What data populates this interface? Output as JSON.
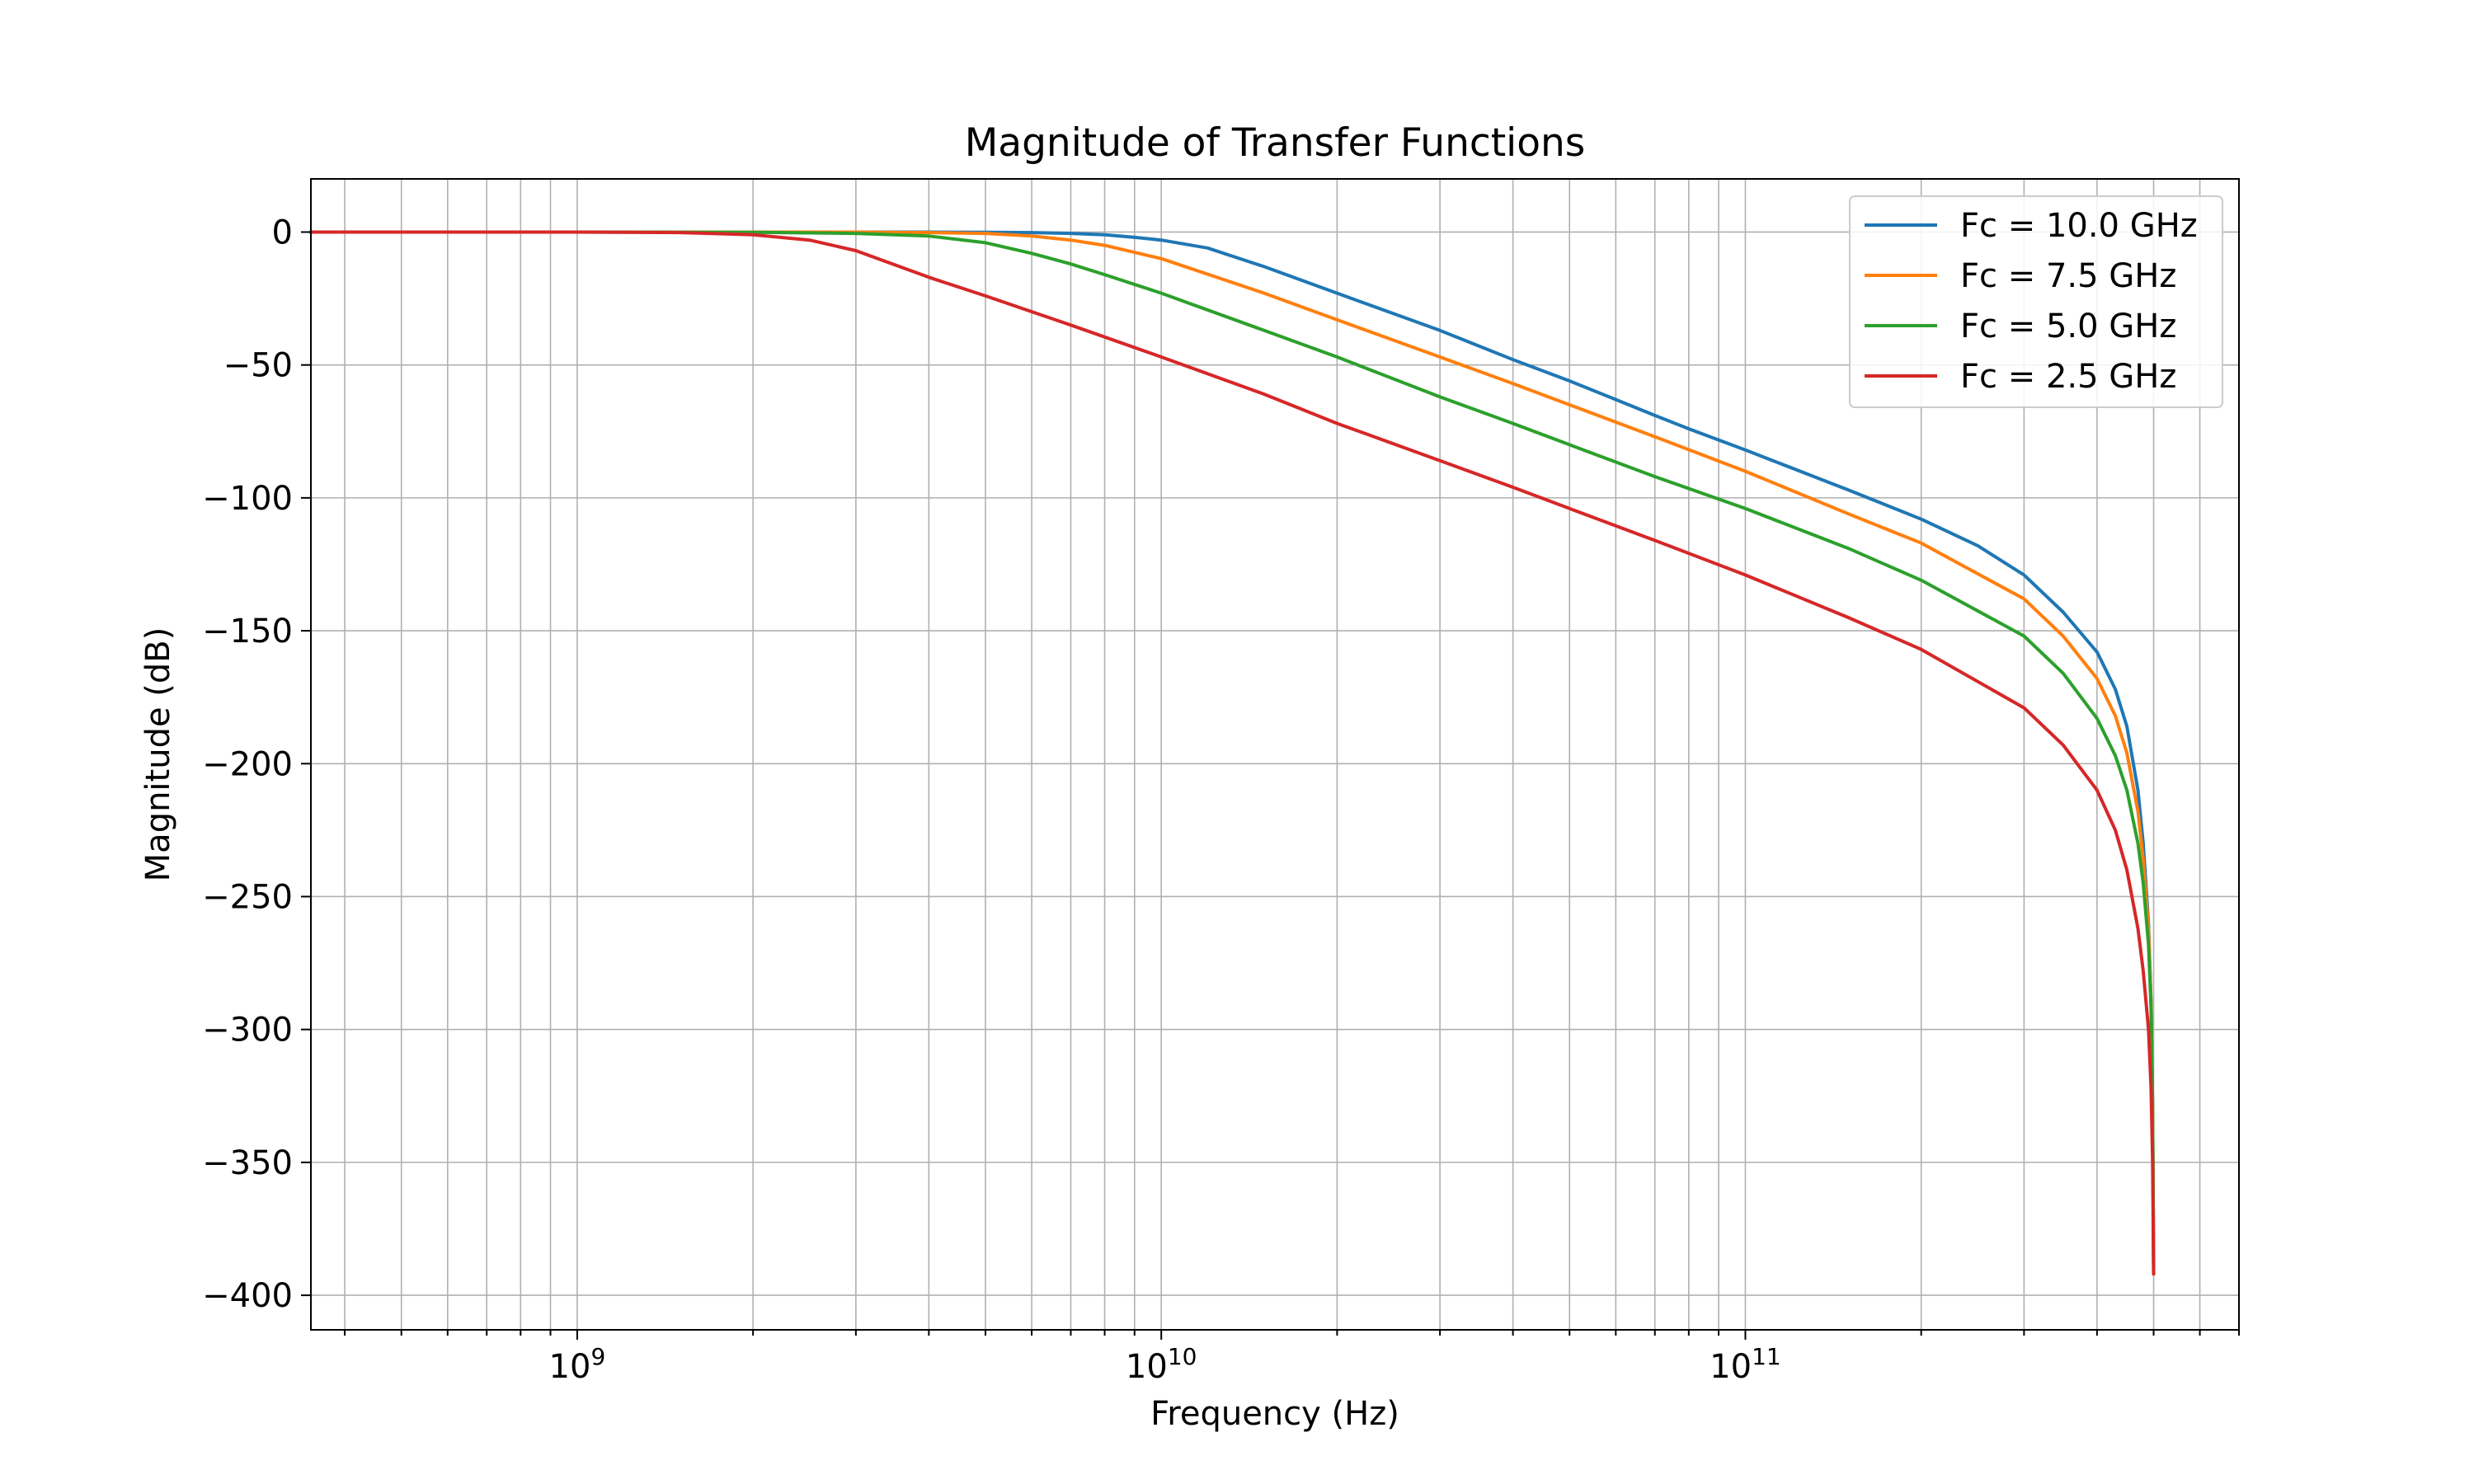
{
  "chart_data": {
    "type": "line",
    "title": "Magnitude of Transfer Functions",
    "xlabel": "Frequency (Hz)",
    "ylabel": "Magnitude (dB)",
    "xscale": "log",
    "xlim": [
      350000000,
      700000000000
    ],
    "ylim": [
      -413,
      20
    ],
    "grid": "both",
    "legend_position": "top-right",
    "x_ticks": [
      {
        "value": 1000000000,
        "base": "10",
        "exp": "9"
      },
      {
        "value": 10000000000,
        "base": "10",
        "exp": "10"
      },
      {
        "value": 100000000000,
        "base": "10",
        "exp": "11"
      }
    ],
    "y_ticks": [
      {
        "value": 0,
        "label": "0"
      },
      {
        "value": -50,
        "label": "−50"
      },
      {
        "value": -100,
        "label": "−100"
      },
      {
        "value": -150,
        "label": "−150"
      },
      {
        "value": -200,
        "label": "−200"
      },
      {
        "value": -250,
        "label": "−250"
      },
      {
        "value": -300,
        "label": "−300"
      },
      {
        "value": -350,
        "label": "−350"
      },
      {
        "value": -400,
        "label": "−400"
      }
    ],
    "series": [
      {
        "name": "Fc = 10.0 GHz",
        "color": "#1f77b4",
        "points": [
          [
            350000000,
            0
          ],
          [
            1000000000,
            0
          ],
          [
            2000000000,
            0
          ],
          [
            3000000000,
            0
          ],
          [
            4000000000,
            0
          ],
          [
            5000000000,
            -0.1
          ],
          [
            6000000000,
            -0.2
          ],
          [
            7000000000,
            -0.5
          ],
          [
            8000000000,
            -1
          ],
          [
            9000000000,
            -2
          ],
          [
            10000000000,
            -3
          ],
          [
            12000000000,
            -6
          ],
          [
            15000000000,
            -13
          ],
          [
            20000000000,
            -23
          ],
          [
            30000000000,
            -37
          ],
          [
            40000000000,
            -48
          ],
          [
            50000000000,
            -56
          ],
          [
            60000000000,
            -63
          ],
          [
            70000000000,
            -69
          ],
          [
            80000000000,
            -74
          ],
          [
            100000000000,
            -82
          ],
          [
            150000000000,
            -97
          ],
          [
            200000000000,
            -108
          ],
          [
            250000000000,
            -118
          ],
          [
            300000000000,
            -129
          ],
          [
            350000000000,
            -143
          ],
          [
            400000000000,
            -158
          ],
          [
            430000000000,
            -172
          ],
          [
            450000000000,
            -186
          ],
          [
            470000000000,
            -210
          ],
          [
            480000000000,
            -230
          ],
          [
            490000000000,
            -260
          ],
          [
            495000000000,
            -290
          ],
          [
            498000000000,
            -330
          ],
          [
            500000000000,
            -390
          ]
        ]
      },
      {
        "name": "Fc = 7.5 GHz",
        "color": "#ff7f0e",
        "points": [
          [
            350000000,
            0
          ],
          [
            1000000000,
            0
          ],
          [
            2000000000,
            0
          ],
          [
            3000000000,
            0
          ],
          [
            4000000000,
            -0.2
          ],
          [
            5000000000,
            -0.5
          ],
          [
            6000000000,
            -1.5
          ],
          [
            7000000000,
            -3
          ],
          [
            8000000000,
            -5
          ],
          [
            10000000000,
            -10
          ],
          [
            15000000000,
            -23
          ],
          [
            20000000000,
            -33
          ],
          [
            30000000000,
            -47
          ],
          [
            40000000000,
            -57
          ],
          [
            50000000000,
            -65
          ],
          [
            70000000000,
            -77
          ],
          [
            100000000000,
            -90
          ],
          [
            150000000000,
            -106
          ],
          [
            200000000000,
            -117
          ],
          [
            300000000000,
            -138
          ],
          [
            350000000000,
            -152
          ],
          [
            400000000000,
            -168
          ],
          [
            430000000000,
            -182
          ],
          [
            450000000000,
            -196
          ],
          [
            470000000000,
            -218
          ],
          [
            480000000000,
            -236
          ],
          [
            490000000000,
            -262
          ],
          [
            495000000000,
            -290
          ],
          [
            498000000000,
            -330
          ],
          [
            500000000000,
            -390
          ]
        ]
      },
      {
        "name": "Fc = 5.0 GHz",
        "color": "#2ca02c",
        "points": [
          [
            350000000,
            0
          ],
          [
            1000000000,
            0
          ],
          [
            2000000000,
            -0.1
          ],
          [
            3000000000,
            -0.5
          ],
          [
            4000000000,
            -1.5
          ],
          [
            5000000000,
            -4
          ],
          [
            6000000000,
            -8
          ],
          [
            7000000000,
            -12
          ],
          [
            8000000000,
            -16
          ],
          [
            10000000000,
            -23
          ],
          [
            15000000000,
            -37
          ],
          [
            20000000000,
            -47
          ],
          [
            30000000000,
            -62
          ],
          [
            40000000000,
            -72
          ],
          [
            50000000000,
            -80
          ],
          [
            70000000000,
            -92
          ],
          [
            100000000000,
            -104
          ],
          [
            150000000000,
            -119
          ],
          [
            200000000000,
            -131
          ],
          [
            300000000000,
            -152
          ],
          [
            350000000000,
            -166
          ],
          [
            400000000000,
            -183
          ],
          [
            430000000000,
            -197
          ],
          [
            450000000000,
            -210
          ],
          [
            470000000000,
            -230
          ],
          [
            480000000000,
            -245
          ],
          [
            490000000000,
            -268
          ],
          [
            495000000000,
            -292
          ],
          [
            498000000000,
            -330
          ],
          [
            500000000000,
            -390
          ]
        ]
      },
      {
        "name": "Fc = 2.5 GHz",
        "color": "#d62728",
        "points": [
          [
            350000000,
            0
          ],
          [
            1000000000,
            0
          ],
          [
            1500000000,
            -0.2
          ],
          [
            2000000000,
            -1
          ],
          [
            2500000000,
            -3
          ],
          [
            3000000000,
            -7
          ],
          [
            4000000000,
            -17
          ],
          [
            5000000000,
            -24
          ],
          [
            7000000000,
            -35
          ],
          [
            10000000000,
            -47
          ],
          [
            15000000000,
            -61
          ],
          [
            20000000000,
            -72
          ],
          [
            30000000000,
            -86
          ],
          [
            40000000000,
            -96
          ],
          [
            50000000000,
            -104
          ],
          [
            70000000000,
            -116
          ],
          [
            100000000000,
            -129
          ],
          [
            150000000000,
            -145
          ],
          [
            200000000000,
            -157
          ],
          [
            300000000000,
            -179
          ],
          [
            350000000000,
            -193
          ],
          [
            400000000000,
            -210
          ],
          [
            430000000000,
            -225
          ],
          [
            450000000000,
            -240
          ],
          [
            470000000000,
            -262
          ],
          [
            480000000000,
            -278
          ],
          [
            490000000000,
            -300
          ],
          [
            495000000000,
            -322
          ],
          [
            498000000000,
            -350
          ],
          [
            500000000000,
            -392
          ]
        ]
      }
    ]
  }
}
